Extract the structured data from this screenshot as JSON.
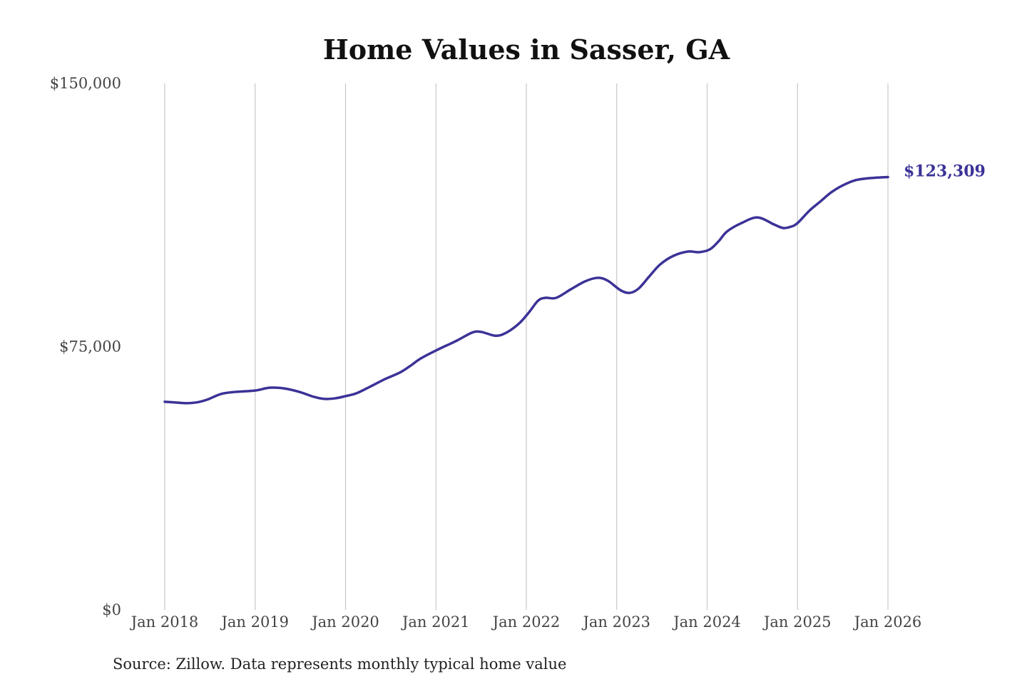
{
  "chart_data": {
    "type": "line",
    "title": "Home Values in Sasser, GA",
    "xlabel": "",
    "ylabel": "",
    "ylim": [
      0,
      150000
    ],
    "xlim": [
      2018,
      2026
    ],
    "y_ticks": [
      0,
      75000,
      150000
    ],
    "y_tick_labels": [
      "$0",
      "$75,000",
      "$150,000"
    ],
    "x_ticks": [
      2018,
      2019,
      2020,
      2021,
      2022,
      2023,
      2024,
      2025,
      2026
    ],
    "x_tick_labels": [
      "Jan 2018",
      "Jan 2019",
      "Jan 2020",
      "Jan 2021",
      "Jan 2022",
      "Jan 2023",
      "Jan 2024",
      "Jan 2025",
      "Jan 2026"
    ],
    "grid": "vertical",
    "line_color": "#3b3297",
    "end_label": "$123,309",
    "source": "Source: Zillow. Data represents monthly typical home value",
    "series": [
      {
        "name": "Typical home value",
        "x": [
          2018.0,
          2018.23,
          2018.35,
          2018.47,
          2018.62,
          2018.78,
          2019.0,
          2019.16,
          2019.32,
          2019.49,
          2019.65,
          2019.77,
          2019.89,
          2020.0,
          2020.12,
          2020.28,
          2020.44,
          2020.6,
          2020.71,
          2020.83,
          2021.0,
          2021.23,
          2021.4,
          2021.5,
          2021.66,
          2021.78,
          2021.92,
          2022.03,
          2022.13,
          2022.21,
          2022.33,
          2022.49,
          2022.65,
          2022.79,
          2022.9,
          2023.04,
          2023.14,
          2023.24,
          2023.36,
          2023.48,
          2023.63,
          2023.79,
          2023.91,
          2024.03,
          2024.13,
          2024.22,
          2024.38,
          2024.56,
          2024.74,
          2024.84,
          2024.93,
          2025.0,
          2025.13,
          2025.25,
          2025.37,
          2025.49,
          2025.64,
          2025.8,
          2026.0
        ],
        "values": [
          59300,
          58900,
          59100,
          59900,
          61500,
          62100,
          62500,
          63300,
          63100,
          62100,
          60700,
          60100,
          60300,
          60900,
          61700,
          63700,
          65800,
          67600,
          69400,
          71600,
          73900,
          76700,
          79000,
          79200,
          78100,
          79000,
          81600,
          84800,
          88100,
          88900,
          88900,
          91300,
          93600,
          94600,
          93800,
          91100,
          90300,
          91500,
          95000,
          98400,
          100900,
          102100,
          101900,
          102700,
          105100,
          107800,
          110200,
          111800,
          109800,
          108800,
          109200,
          110200,
          113700,
          116300,
          118900,
          120800,
          122400,
          123000,
          123309
        ]
      }
    ]
  }
}
